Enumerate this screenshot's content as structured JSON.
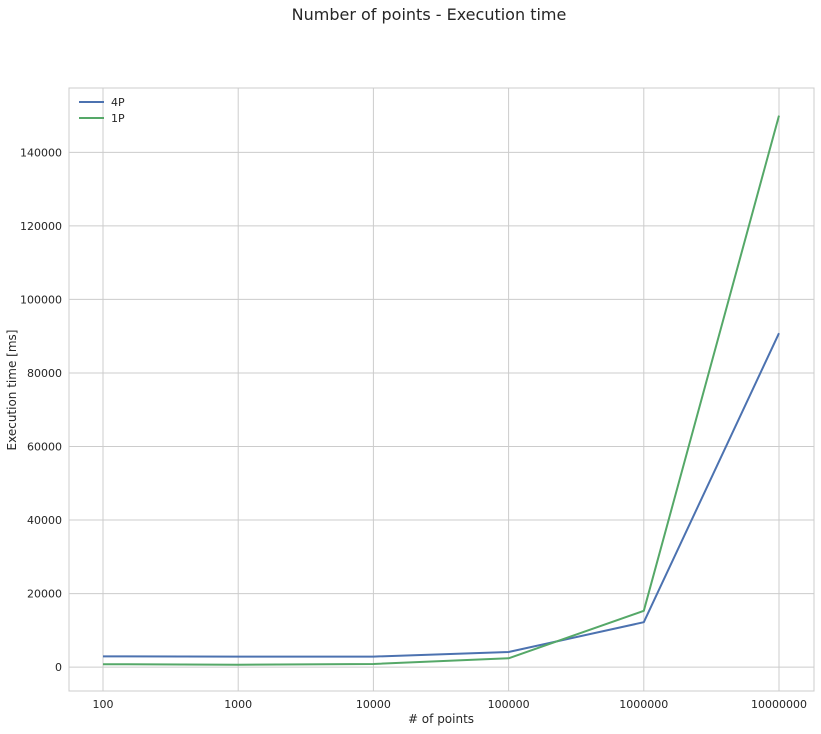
{
  "chart_data": {
    "type": "line",
    "title": "Number of points - Execution time",
    "xlabel": "# of points",
    "ylabel": "Execution time [ms]",
    "x_categories": [
      "100",
      "1000",
      "10000",
      "100000",
      "1000000",
      "10000000"
    ],
    "yticks": [
      0,
      20000,
      40000,
      60000,
      80000,
      100000,
      120000,
      140000
    ],
    "ytick_labels": [
      "0",
      "20000",
      "40000",
      "60000",
      "80000",
      "100000",
      "120000",
      "140000"
    ],
    "ylim": [
      -6500,
      157500
    ],
    "grid": true,
    "legend_position": "top-left",
    "series": [
      {
        "name": "4P",
        "color": "#4c72b0",
        "values": [
          2900,
          2850,
          2850,
          4100,
          12200,
          90800
        ]
      },
      {
        "name": "1P",
        "color": "#55a868",
        "values": [
          800,
          650,
          850,
          2400,
          15300,
          150000
        ]
      }
    ]
  }
}
